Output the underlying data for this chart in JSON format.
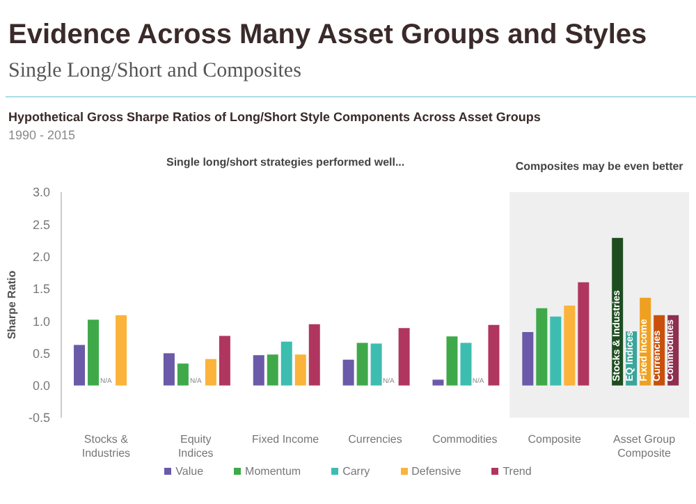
{
  "chart_data": {
    "type": "bar",
    "title": "Evidence Across Many Asset Groups and Styles",
    "subtitle": "Single Long/Short and Composites",
    "ylabel": "Sharpe Ratio",
    "annotations": [
      "Hypothetical Gross Sharpe Ratios of Long/Short Style Components Across Asset Groups",
      "1990 - 2015",
      "Single long/short strategies performed well...",
      "Composites may be even better"
    ],
    "categories": [
      "Stocks & Industries",
      "Equity Indices",
      "Fixed Income",
      "Currencies",
      "Commodities",
      "Composite",
      "Asset Group Composite"
    ],
    "series": [
      {
        "name": "Value",
        "color": "#6a5aa8",
        "colors": [
          "#6a5aa8",
          "#6a5aa8",
          "#6a5aa8",
          "#6a5aa8",
          "#6a5aa8",
          "#6a5aa8",
          "#1e4d20"
        ],
        "values": [
          0.63,
          0.5,
          0.47,
          0.4,
          0.09,
          0.83,
          2.29
        ],
        "value_labels": [
          null,
          null,
          null,
          null,
          null,
          null,
          "Stocks & Industries"
        ]
      },
      {
        "name": "Momentum",
        "color": "#3fa94a",
        "colors": [
          "#3fa94a",
          "#3fa94a",
          "#3fa94a",
          "#3fa94a",
          "#3fa94a",
          "#3fa94a",
          "#3aa59a"
        ],
        "values": [
          1.02,
          0.34,
          0.48,
          0.66,
          0.76,
          1.2,
          0.84
        ],
        "value_labels": [
          null,
          null,
          null,
          null,
          null,
          null,
          "EQ Indices"
        ]
      },
      {
        "name": "Carry",
        "color": "#3dbdb0",
        "colors": [
          "#3dbdb0",
          "#3dbdb0",
          "#3dbdb0",
          "#3dbdb0",
          "#3dbdb0",
          "#3dbdb0",
          "#f0a020"
        ],
        "values": [
          null,
          null,
          0.68,
          0.65,
          0.66,
          1.07,
          1.36
        ],
        "value_labels": [
          "N/A",
          "N/A",
          null,
          null,
          null,
          null,
          "Fixed Income"
        ]
      },
      {
        "name": "Defensive",
        "color": "#fbb33b",
        "colors": [
          "#fbb33b",
          "#fbb33b",
          "#fbb33b",
          "#fbb33b",
          "#fbb33b",
          "#fbb33b",
          "#c8500a"
        ],
        "values": [
          1.09,
          0.41,
          0.48,
          null,
          null,
          1.24,
          1.09
        ],
        "value_labels": [
          null,
          null,
          null,
          "N/A",
          "N/A",
          null,
          "Currencies"
        ]
      },
      {
        "name": "Trend",
        "color": "#b0365f",
        "colors": [
          "#b0365f",
          "#b0365f",
          "#b0365f",
          "#b0365f",
          "#b0365f",
          "#b0365f",
          "#8e2f4e"
        ],
        "values": [
          null,
          0.77,
          0.95,
          0.89,
          0.94,
          1.6,
          1.09
        ],
        "value_labels": [
          null,
          null,
          null,
          null,
          null,
          null,
          "Commodities"
        ]
      }
    ],
    "bands": [
      {
        "axis": "x",
        "from": "Composite",
        "to": "Asset Group Composite",
        "color": "#efefef"
      }
    ],
    "ylim": [
      -0.5,
      3.0
    ],
    "yticks": [
      {
        "value": -0.5,
        "label": "-0.5"
      },
      {
        "value": 0,
        "label": "0.0"
      },
      {
        "value": 0.5,
        "label": "0.5"
      },
      {
        "value": 1,
        "label": "1.0"
      },
      {
        "value": 1.5,
        "label": "1.5"
      },
      {
        "value": 2,
        "label": "2.0"
      },
      {
        "value": 2.5,
        "label": "2.5"
      },
      {
        "value": 3,
        "label": "3.0"
      }
    ],
    "grid": false,
    "legend": "bottom"
  }
}
